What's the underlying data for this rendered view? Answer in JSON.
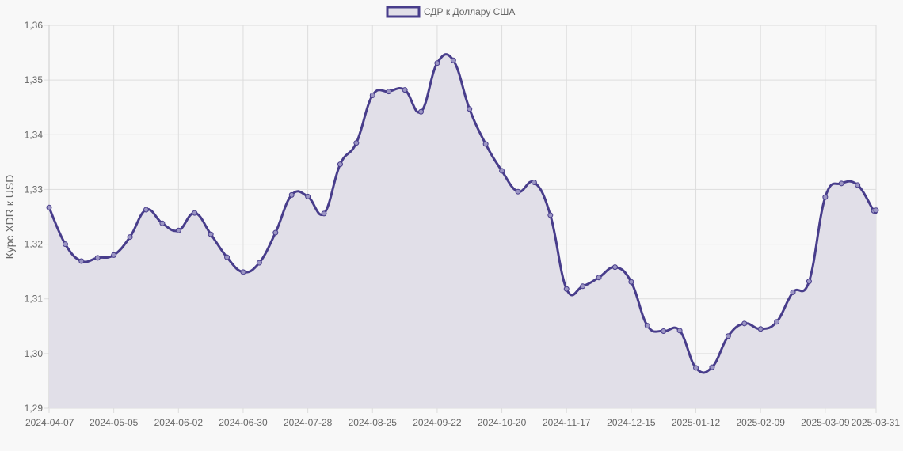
{
  "chart_data": {
    "type": "line",
    "title": "",
    "xlabel": "",
    "ylabel": "Курс XDR к USD",
    "ylim": [
      1.29,
      1.36
    ],
    "yticks": [
      "1,29",
      "1,30",
      "1,31",
      "1,32",
      "1,33",
      "1,34",
      "1,35",
      "1,36"
    ],
    "xtick_labels": [
      "2024-04-07",
      "2024-05-05",
      "2024-06-02",
      "2024-06-30",
      "2024-07-28",
      "2024-08-25",
      "2024-09-22",
      "2024-10-20",
      "2024-11-17",
      "2024-12-15",
      "2025-01-12",
      "2025-02-09",
      "2025-03-09",
      "2025-03-31"
    ],
    "grid": true,
    "legend_position": "top-center",
    "x": [
      "2024-04-07",
      "2024-04-14",
      "2024-04-21",
      "2024-04-28",
      "2024-05-05",
      "2024-05-12",
      "2024-05-19",
      "2024-05-26",
      "2024-06-02",
      "2024-06-09",
      "2024-06-16",
      "2024-06-23",
      "2024-06-30",
      "2024-07-07",
      "2024-07-14",
      "2024-07-21",
      "2024-07-28",
      "2024-08-04",
      "2024-08-11",
      "2024-08-18",
      "2024-08-25",
      "2024-09-01",
      "2024-09-08",
      "2024-09-15",
      "2024-09-22",
      "2024-09-29",
      "2024-10-06",
      "2024-10-13",
      "2024-10-20",
      "2024-10-27",
      "2024-11-03",
      "2024-11-10",
      "2024-11-17",
      "2024-11-24",
      "2024-12-01",
      "2024-12-08",
      "2024-12-15",
      "2024-12-22",
      "2024-12-29",
      "2025-01-05",
      "2025-01-12",
      "2025-01-19",
      "2025-01-26",
      "2025-02-02",
      "2025-02-09",
      "2025-02-16",
      "2025-02-23",
      "2025-03-02",
      "2025-03-09",
      "2025-03-16",
      "2025-03-23",
      "2025-03-30",
      "2025-03-31"
    ],
    "series": [
      {
        "name": "СДР к Доллару США",
        "color": "#483d8b",
        "fill": "#e1dfe8",
        "values": [
          1.3267,
          1.32,
          1.3169,
          1.3175,
          1.318,
          1.3213,
          1.3263,
          1.3238,
          1.3225,
          1.3257,
          1.3218,
          1.3176,
          1.3149,
          1.3166,
          1.3221,
          1.329,
          1.3287,
          1.3256,
          1.3346,
          1.3385,
          1.3472,
          1.3479,
          1.3482,
          1.3442,
          1.3531,
          1.3536,
          1.3447,
          1.3383,
          1.3334,
          1.3296,
          1.3313,
          1.3253,
          1.3118,
          1.3123,
          1.3139,
          1.3158,
          1.3131,
          1.3051,
          1.3041,
          1.3042,
          1.2974,
          1.2975,
          1.3032,
          1.3055,
          1.3045,
          1.3058,
          1.3112,
          1.3132,
          1.3286,
          1.3311,
          1.3308,
          1.3261,
          1.3262
        ]
      }
    ]
  }
}
